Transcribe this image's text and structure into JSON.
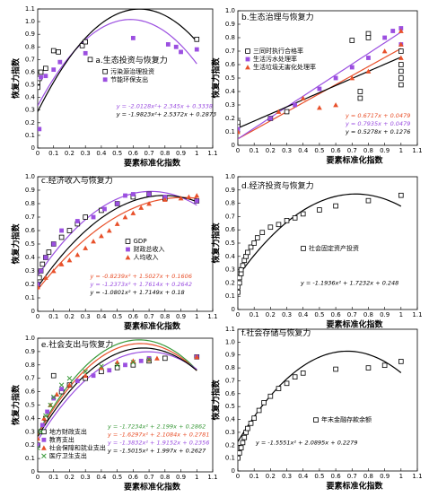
{
  "chart_data": [
    {
      "type": "scatter",
      "title": "a.生态投资与恢复力",
      "xlabel": "要素标准化指数",
      "ylabel": "恢复力指数",
      "xlim": [
        0,
        1.1
      ],
      "xticks": [
        0,
        0.1,
        0.2,
        0.3,
        0.4,
        0.5,
        0.6,
        0.7,
        0.8,
        0.9,
        1,
        1.1
      ],
      "ylim": [
        0,
        1.1
      ],
      "yticks": [
        0,
        0.1,
        0.2,
        0.3,
        0.4,
        0.5,
        0.6,
        0.7,
        0.8,
        0.9,
        {
          "value": 1,
          "label": "1.0"
        },
        1.1
      ],
      "series": [
        {
          "name": "污染源治理投资",
          "color": "#000000",
          "marker": "square-open",
          "x": [
            0,
            0,
            0.01,
            0.02,
            0.05,
            0.1,
            0.13,
            0.28,
            0.3,
            0.33,
            1
          ],
          "values": [
            0.48,
            0.52,
            0.55,
            0.6,
            0.63,
            0.77,
            0.76,
            0.81,
            0.84,
            0.7,
            0.86
          ]
        },
        {
          "name": "节能环保支出",
          "color": "#9b4fe0",
          "marker": "square",
          "x": [
            0.01,
            0.02,
            0.05,
            0.1,
            0.14,
            0.3,
            0.6,
            0.82,
            0.87,
            0.9,
            1
          ],
          "values": [
            0.15,
            0.56,
            0.57,
            0.62,
            0.68,
            0.75,
            0.87,
            0.82,
            0.8,
            0.76,
            0.78
          ]
        }
      ],
      "fits": [
        {
          "color": "#9b4fe0",
          "coefficients": [
            -2.0128,
            2.345,
            0.3338
          ],
          "label": "y = -2.0128x²+ 2.345x + 0.3338"
        },
        {
          "color": "#000000",
          "coefficients": [
            -1.9823,
            2.5372,
            0.2873
          ],
          "label": "y = -1.9823x²+ 2.5372x + 0.2873"
        }
      ]
    },
    {
      "type": "scatter",
      "title": "b.生态治理与恢复力",
      "xlabel": "要素标准化指数",
      "ylabel": "恢复力指数",
      "xlim": [
        0,
        1.1
      ],
      "xticks": [
        0,
        0.1,
        0.2,
        0.3,
        0.4,
        0.5,
        0.6,
        0.7,
        0.8,
        0.9,
        1,
        1.1
      ],
      "ylim": [
        0,
        1.0
      ],
      "yticks": [
        0,
        0.1,
        0.2,
        0.3,
        0.4,
        0.5,
        0.6,
        0.7,
        0.8,
        0.9,
        {
          "value": 1,
          "label": "1.0"
        }
      ],
      "series": [
        {
          "name": "三同时执行合格率",
          "color": "#000000",
          "marker": "square-open",
          "x": [
            0,
            0,
            0.2,
            0.3,
            0.75,
            0.8,
            0.8,
            0.75,
            1,
            1,
            1,
            1,
            1,
            0.7
          ],
          "values": [
            0.15,
            0.17,
            0.2,
            0.25,
            0.4,
            0.83,
            0.8,
            0.35,
            0.45,
            0.5,
            0.55,
            0.6,
            0.7,
            0.78
          ]
        },
        {
          "name": "生活污水处理率",
          "color": "#9b4fe0",
          "marker": "square",
          "x": [
            0,
            0.2,
            0.35,
            0.5,
            0.6,
            0.7,
            0.8,
            0.9,
            0.95,
            1,
            1
          ],
          "values": [
            0.12,
            0.2,
            0.3,
            0.42,
            0.5,
            0.58,
            0.65,
            0.8,
            0.85,
            0.87,
            0.75
          ]
        },
        {
          "name": "生活垃圾无害化处理率",
          "color": "#e8502a",
          "marker": "triangle",
          "x": [
            0,
            0.25,
            0.4,
            0.5,
            0.6,
            0.7,
            0.8,
            0.9,
            1,
            1,
            1
          ],
          "values": [
            0.1,
            0.25,
            0.35,
            0.28,
            0.3,
            0.5,
            0.55,
            0.7,
            0.75,
            0.85,
            0.65
          ]
        }
      ],
      "fits": [
        {
          "color": "#e8502a",
          "coefficients": [
            0.6717,
            0.0479
          ],
          "label": "y = 0.6717x + 0.0479"
        },
        {
          "color": "#9b4fe0",
          "coefficients": [
            0.7935,
            0.0479
          ],
          "label": "y = 0.7935x + 0.0479"
        },
        {
          "color": "#000000",
          "coefficients": [
            0.5278,
            0.1276
          ],
          "label": "y = 0.5278x + 0.1276"
        }
      ]
    },
    {
      "type": "scatter",
      "title": "c.经济收入与恢复力",
      "xlabel": "要素标准化指数",
      "ylabel": "恢复力指数",
      "xlim": [
        0,
        1.1
      ],
      "xticks": [
        0,
        0.1,
        0.2,
        0.3,
        0.4,
        0.5,
        0.6,
        0.7,
        0.8,
        0.9,
        1,
        1.1
      ],
      "ylim": [
        0,
        1.0
      ],
      "yticks": [
        0,
        0.1,
        0.2,
        0.3,
        0.4,
        0.5,
        0.6,
        0.7,
        0.8,
        0.9,
        {
          "value": 1,
          "label": "1.0"
        }
      ],
      "series": [
        {
          "name": "GDP",
          "color": "#000000",
          "marker": "square-open",
          "x": [
            0,
            0.01,
            0.02,
            0.03,
            0.05,
            0.07,
            0.1,
            0.15,
            0.2,
            0.25,
            0.3,
            0.4,
            0.5,
            0.6,
            0.7,
            0.8,
            1
          ],
          "values": [
            0.2,
            0.25,
            0.3,
            0.35,
            0.4,
            0.44,
            0.5,
            0.55,
            0.6,
            0.65,
            0.7,
            0.75,
            0.8,
            0.85,
            0.87,
            0.84,
            0.82
          ]
        },
        {
          "name": "财政总收入",
          "color": "#9b4fe0",
          "marker": "square",
          "x": [
            0,
            0.02,
            0.05,
            0.1,
            0.15,
            0.25,
            0.35,
            0.42,
            0.5,
            0.55,
            0.6,
            0.7,
            0.8,
            1
          ],
          "values": [
            0.2,
            0.3,
            0.4,
            0.5,
            0.6,
            0.67,
            0.7,
            0.76,
            0.8,
            0.86,
            0.87,
            0.87,
            0.85,
            0.82
          ]
        },
        {
          "name": "人均收入",
          "color": "#e8502a",
          "marker": "triangle",
          "x": [
            0,
            0.05,
            0.1,
            0.15,
            0.2,
            0.25,
            0.3,
            0.35,
            0.4,
            0.45,
            0.5,
            0.55,
            0.6,
            0.65,
            0.7,
            0.8,
            0.9,
            0.95,
            1
          ],
          "values": [
            0.18,
            0.25,
            0.3,
            0.35,
            0.38,
            0.42,
            0.47,
            0.52,
            0.56,
            0.6,
            0.65,
            0.7,
            0.73,
            0.77,
            0.8,
            0.83,
            0.84,
            0.85,
            0.86
          ]
        }
      ],
      "fits": [
        {
          "color": "#e8502a",
          "coefficients": [
            -0.8239,
            1.5027,
            0.1606
          ],
          "label": "y = -0.8239x² + 1.5027x + 0.1606"
        },
        {
          "color": "#9b4fe0",
          "coefficients": [
            -1.2373,
            1.7614,
            0.2642
          ],
          "label": "y = -1.2373x² + 1.7614x + 0.2642"
        },
        {
          "color": "#000000",
          "coefficients": [
            -1.0801,
            1.7149,
            0.18
          ],
          "label": "y = -1.0801x² + 1.7149x + 0.18"
        }
      ]
    },
    {
      "type": "scatter",
      "title": "d.经济投资与恢复力",
      "xlabel": "要素标准化指数",
      "ylabel": "恢复力指数",
      "xlim": [
        0,
        1.1
      ],
      "xticks": [
        0,
        0.1,
        0.2,
        0.3,
        0.4,
        0.5,
        0.6,
        0.7,
        0.8,
        0.9,
        1,
        1.1
      ],
      "ylim": [
        0,
        1.0
      ],
      "yticks": [
        0,
        0.1,
        0.2,
        0.3,
        0.4,
        0.5,
        0.6,
        0.7,
        0.8,
        0.9,
        {
          "value": 1,
          "label": "1.0"
        }
      ],
      "series": [
        {
          "name": "社会固定资产投资",
          "color": "#000000",
          "marker": "square-open",
          "x": [
            0,
            0,
            0.01,
            0.01,
            0.02,
            0.02,
            0.03,
            0.04,
            0.05,
            0.06,
            0.08,
            0.1,
            0.12,
            0.15,
            0.2,
            0.25,
            0.3,
            0.35,
            0.4,
            0.5,
            0.6,
            0.8,
            1
          ],
          "values": [
            0.13,
            0.17,
            0.2,
            0.24,
            0.27,
            0.3,
            0.33,
            0.37,
            0.4,
            0.43,
            0.47,
            0.5,
            0.54,
            0.58,
            0.62,
            0.64,
            0.67,
            0.69,
            0.72,
            0.75,
            0.78,
            0.82,
            0.86
          ]
        }
      ],
      "fits": [
        {
          "color": "#000000",
          "coefficients": [
            -1.1936,
            1.7232,
            0.248
          ],
          "label": "y = -1.1936x² + 1.7232x + 0.248"
        }
      ]
    },
    {
      "type": "scatter",
      "title": "e.社会支出与恢复力",
      "xlabel": "要素标准化指数",
      "ylabel": "恢复力指数",
      "xlim": [
        0,
        1.1
      ],
      "xticks": [
        0,
        0.1,
        0.2,
        0.3,
        0.4,
        0.5,
        0.6,
        0.7,
        0.8,
        0.9,
        1,
        1.1
      ],
      "ylim": [
        0,
        1.0
      ],
      "yticks": [
        0,
        0.1,
        0.2,
        0.3,
        0.4,
        0.5,
        0.6,
        0.7,
        0.8,
        0.9,
        {
          "value": 1,
          "label": "1.0"
        }
      ],
      "series": [
        {
          "name": "地方财政支出",
          "color": "#000000",
          "marker": "square-open",
          "x": [
            0,
            0.02,
            0.05,
            0.1,
            0.15,
            0.2,
            0.3,
            0.4,
            0.5,
            0.6,
            0.7,
            0.8,
            1
          ],
          "values": [
            0.2,
            0.3,
            0.4,
            0.72,
            0.6,
            0.65,
            0.7,
            0.75,
            0.78,
            0.8,
            0.83,
            0.85,
            0.86
          ]
        },
        {
          "name": "教育支出",
          "color": "#9b4fe0",
          "marker": "square",
          "x": [
            0,
            0.03,
            0.06,
            0.1,
            0.15,
            0.25,
            0.35,
            0.45,
            0.55,
            0.65,
            0.7,
            1
          ],
          "values": [
            0.2,
            0.35,
            0.45,
            0.55,
            0.62,
            0.68,
            0.72,
            0.76,
            0.8,
            0.83,
            0.85,
            0.86
          ]
        },
        {
          "name": "社会保障和就业支出",
          "color": "#e8502a",
          "marker": "triangle",
          "x": [
            0,
            0.04,
            0.08,
            0.12,
            0.2,
            0.3,
            0.4,
            0.5,
            0.6,
            0.7,
            0.75,
            1
          ],
          "values": [
            0.25,
            0.4,
            0.5,
            0.58,
            0.65,
            0.72,
            0.78,
            0.82,
            0.83,
            0.84,
            0.85,
            0.86
          ]
        },
        {
          "name": "医疗卫生支出",
          "color": "#3a9a3a",
          "marker": "cross",
          "x": [
            0,
            0.02,
            0.05,
            0.08,
            0.1,
            0.15,
            0.2,
            0.3,
            0.4,
            0.5,
            0.6,
            0.7
          ],
          "values": [
            0.18,
            0.3,
            0.42,
            0.5,
            0.56,
            0.65,
            0.7,
            0.75,
            0.79,
            0.8,
            0.82,
            0.84
          ]
        }
      ],
      "fits": [
        {
          "color": "#3a9a3a",
          "coefficients": [
            -1.7234,
            2.199,
            0.2862
          ],
          "label": "y = -1.7234x² + 2.199x + 0.2862"
        },
        {
          "color": "#e8502a",
          "coefficients": [
            -1.6297,
            2.1084,
            0.2781
          ],
          "label": "y = -1.6297x² + 2.1084x + 0.2781"
        },
        {
          "color": "#9b4fe0",
          "coefficients": [
            -1.3832,
            1.9152,
            0.2356
          ],
          "label": "y = -1.3832x² + 1.9152x + 0.2356"
        },
        {
          "color": "#000000",
          "coefficients": [
            -1.5015,
            1.997,
            0.2627
          ],
          "label": "y = -1.5015x² + 1.997x + 0.2627"
        }
      ]
    },
    {
      "type": "scatter",
      "title": "f.社会存储与恢复力",
      "xlabel": "要素标准化指数",
      "ylabel": "恢复力指数",
      "xlim": [
        0,
        1.1
      ],
      "xticks": [
        0,
        0.1,
        0.2,
        0.3,
        0.4,
        0.5,
        0.6,
        0.7,
        0.8,
        0.9,
        1,
        1.1
      ],
      "ylim": [
        0,
        1.1
      ],
      "yticks": [
        0,
        0.1,
        0.2,
        0.3,
        0.4,
        0.5,
        0.6,
        0.7,
        0.8,
        0.9,
        {
          "value": 1,
          "label": "1.0"
        },
        1.1
      ],
      "series": [
        {
          "name": "年末金融存款余额",
          "color": "#000000",
          "marker": "square-open",
          "x": [
            0,
            0.01,
            0.02,
            0.03,
            0.04,
            0.05,
            0.06,
            0.08,
            0.1,
            0.13,
            0.16,
            0.2,
            0.25,
            0.3,
            0.35,
            0.4,
            0.6,
            0.8,
            0.9,
            1
          ],
          "values": [
            0.1,
            0.14,
            0.18,
            0.22,
            0.26,
            0.3,
            0.33,
            0.37,
            0.41,
            0.47,
            0.53,
            0.58,
            0.64,
            0.68,
            0.73,
            0.76,
            0.79,
            0.8,
            0.82,
            0.85
          ]
        }
      ],
      "fits": [
        {
          "color": "#000000",
          "coefficients": [
            -1.5551,
            2.0895,
            0.2279
          ],
          "label": "y = -1.5551x² + 2.0895x + 0.2279"
        }
      ]
    }
  ]
}
